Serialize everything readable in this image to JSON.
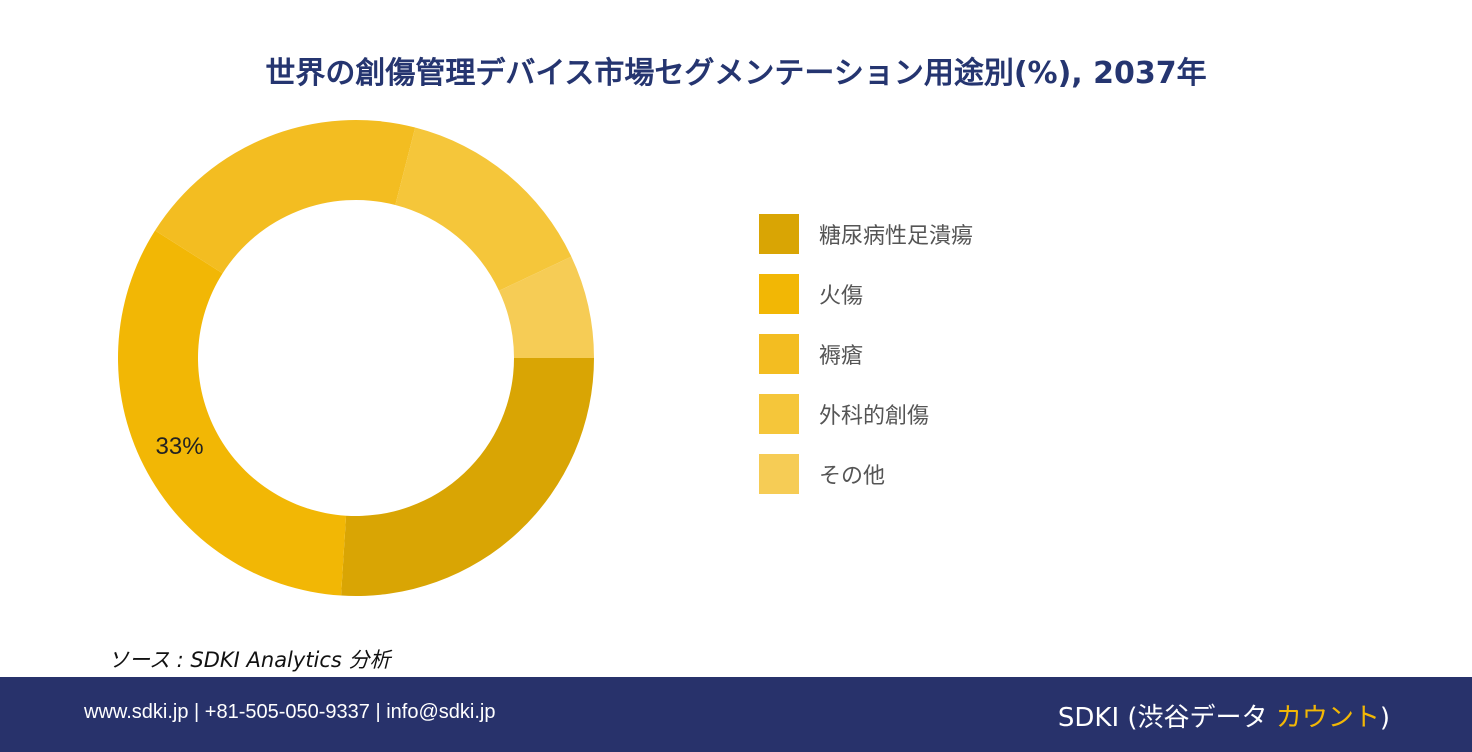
{
  "chart_data": {
    "type": "pie",
    "subtype": "donut",
    "title": "世界の創傷管理デバイス市場セグメンテーション用途別(%), 2037年",
    "categories": [
      "糖尿病性足潰瘍",
      "火傷",
      "褥瘡",
      "外科的創傷",
      "その他"
    ],
    "values": [
      26,
      33,
      20,
      14,
      7
    ],
    "colors": [
      "#d9a504",
      "#f2b705",
      "#f3bd21",
      "#f5c63a",
      "#f6cc55"
    ],
    "data_labels": [
      "",
      "33%",
      "",
      "",
      ""
    ],
    "legend_position": "right"
  },
  "source": {
    "text": "ソース : SDKI Analytics 分析"
  },
  "footer": {
    "contact": "www.sdki.jp | +81-505-050-9337 | info@sdki.jp",
    "brand_prefix": "SDKI (渋谷データ ",
    "brand_accent": "カウント",
    "brand_suffix": ")",
    "background_color": "#28326b",
    "accent_color": "#f2b705"
  }
}
